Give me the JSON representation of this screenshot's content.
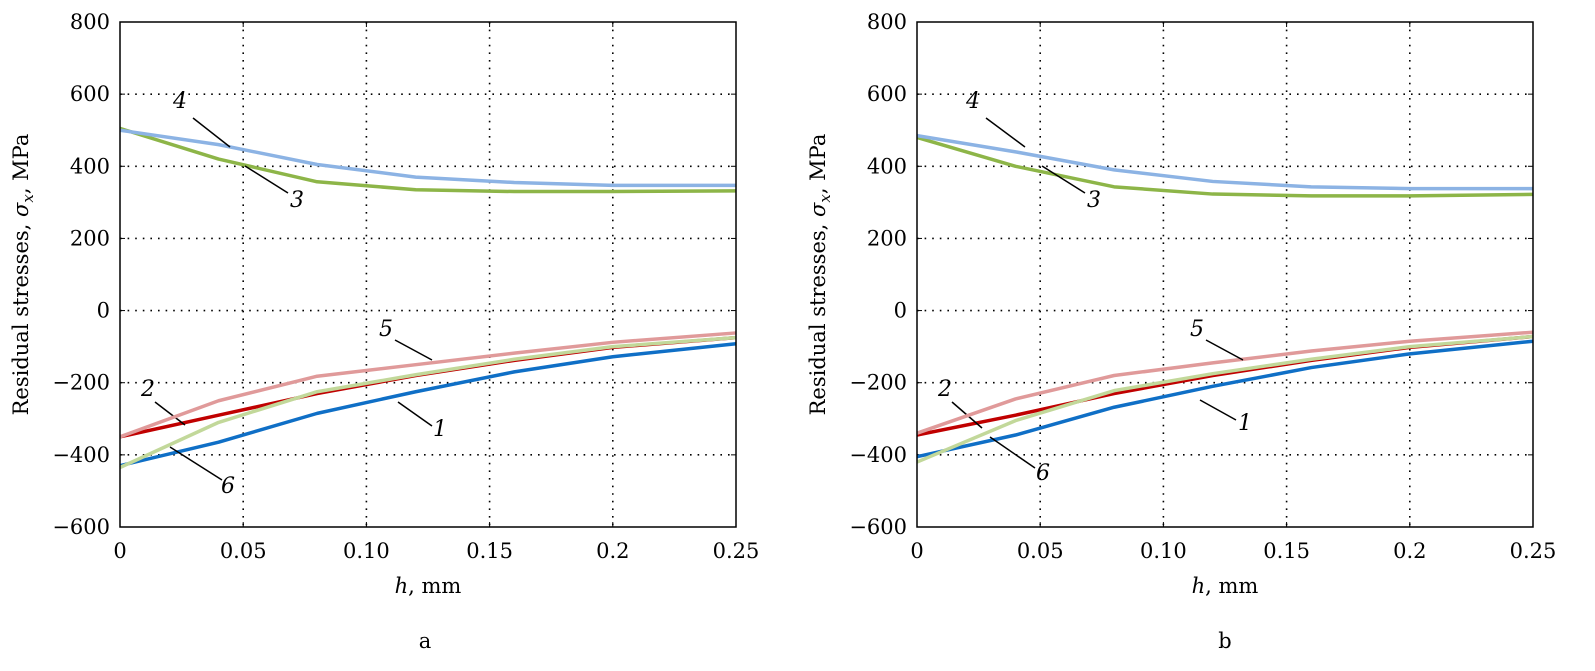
{
  "chart_data": [
    {
      "type": "line",
      "caption": "a",
      "xlabel_var": "h",
      "xlabel_unit": ", mm",
      "ylabel_pre": "Residual stresses, ",
      "ylabel_sym": "σ",
      "ylabel_sub": "x",
      "ylabel_post": ", MPa",
      "xlim": [
        0,
        0.25
      ],
      "ylim": [
        -600,
        800
      ],
      "grid": true,
      "xticks": [
        0,
        0.05,
        0.1,
        0.15,
        0.2,
        0.25
      ],
      "xtick_labels": [
        "0",
        "0.05",
        "0.10",
        "0.15",
        "0.2",
        "0.25"
      ],
      "yticks": [
        -600,
        -400,
        -200,
        0,
        200,
        400,
        600,
        800
      ],
      "ytick_labels": [
        "−600",
        "−400",
        "−200",
        "0",
        "200",
        "400",
        "600",
        "800"
      ],
      "x": [
        0,
        0.04,
        0.08,
        0.12,
        0.16,
        0.2,
        0.25
      ],
      "series": [
        {
          "name": "1",
          "color": "#0f6fc6",
          "values": [
            -430,
            -365,
            -285,
            -225,
            -170,
            -128,
            -92
          ]
        },
        {
          "name": "2",
          "color": "#c00000",
          "values": [
            -350,
            -290,
            -230,
            -180,
            -138,
            -102,
            -75
          ]
        },
        {
          "name": "3",
          "color": "#8db548",
          "values": [
            505,
            420,
            357,
            335,
            330,
            330,
            332
          ]
        },
        {
          "name": "4",
          "color": "#8cb3e4",
          "values": [
            500,
            460,
            405,
            370,
            355,
            347,
            347
          ]
        },
        {
          "name": "5",
          "color": "#e09a9a",
          "values": [
            -350,
            -250,
            -182,
            -150,
            -118,
            -88,
            -62
          ]
        },
        {
          "name": "6",
          "color": "#c2d89a",
          "values": [
            -435,
            -310,
            -225,
            -178,
            -135,
            -100,
            -75
          ]
        }
      ]
    },
    {
      "type": "line",
      "caption": "b",
      "xlabel_var": "h",
      "xlabel_unit": ", mm",
      "ylabel_pre": "Residual stresses, ",
      "ylabel_sym": "σ",
      "ylabel_sub": "x",
      "ylabel_post": ", MPa",
      "xlim": [
        0,
        0.25
      ],
      "ylim": [
        -600,
        800
      ],
      "grid": true,
      "xticks": [
        0,
        0.05,
        0.1,
        0.15,
        0.2,
        0.25
      ],
      "xtick_labels": [
        "0",
        "0.05",
        "0.10",
        "0.15",
        "0.2",
        "0.25"
      ],
      "yticks": [
        -600,
        -400,
        -200,
        0,
        200,
        400,
        600,
        800
      ],
      "ytick_labels": [
        "−600",
        "−400",
        "−200",
        "0",
        "200",
        "400",
        "600",
        "800"
      ],
      "x": [
        0,
        0.04,
        0.08,
        0.12,
        0.16,
        0.2,
        0.25
      ],
      "series": [
        {
          "name": "1",
          "color": "#0f6fc6",
          "values": [
            -405,
            -345,
            -268,
            -210,
            -158,
            -120,
            -85
          ]
        },
        {
          "name": "2",
          "color": "#c00000",
          "values": [
            -345,
            -290,
            -230,
            -180,
            -138,
            -102,
            -72
          ]
        },
        {
          "name": "3",
          "color": "#8db548",
          "values": [
            480,
            400,
            343,
            323,
            318,
            318,
            322
          ]
        },
        {
          "name": "4",
          "color": "#8cb3e4",
          "values": [
            485,
            440,
            390,
            358,
            343,
            338,
            338
          ]
        },
        {
          "name": "5",
          "color": "#e09a9a",
          "values": [
            -340,
            -245,
            -180,
            -145,
            -112,
            -85,
            -60
          ]
        },
        {
          "name": "6",
          "color": "#c2d89a",
          "values": [
            -420,
            -305,
            -222,
            -175,
            -135,
            -100,
            -72
          ]
        }
      ]
    }
  ]
}
